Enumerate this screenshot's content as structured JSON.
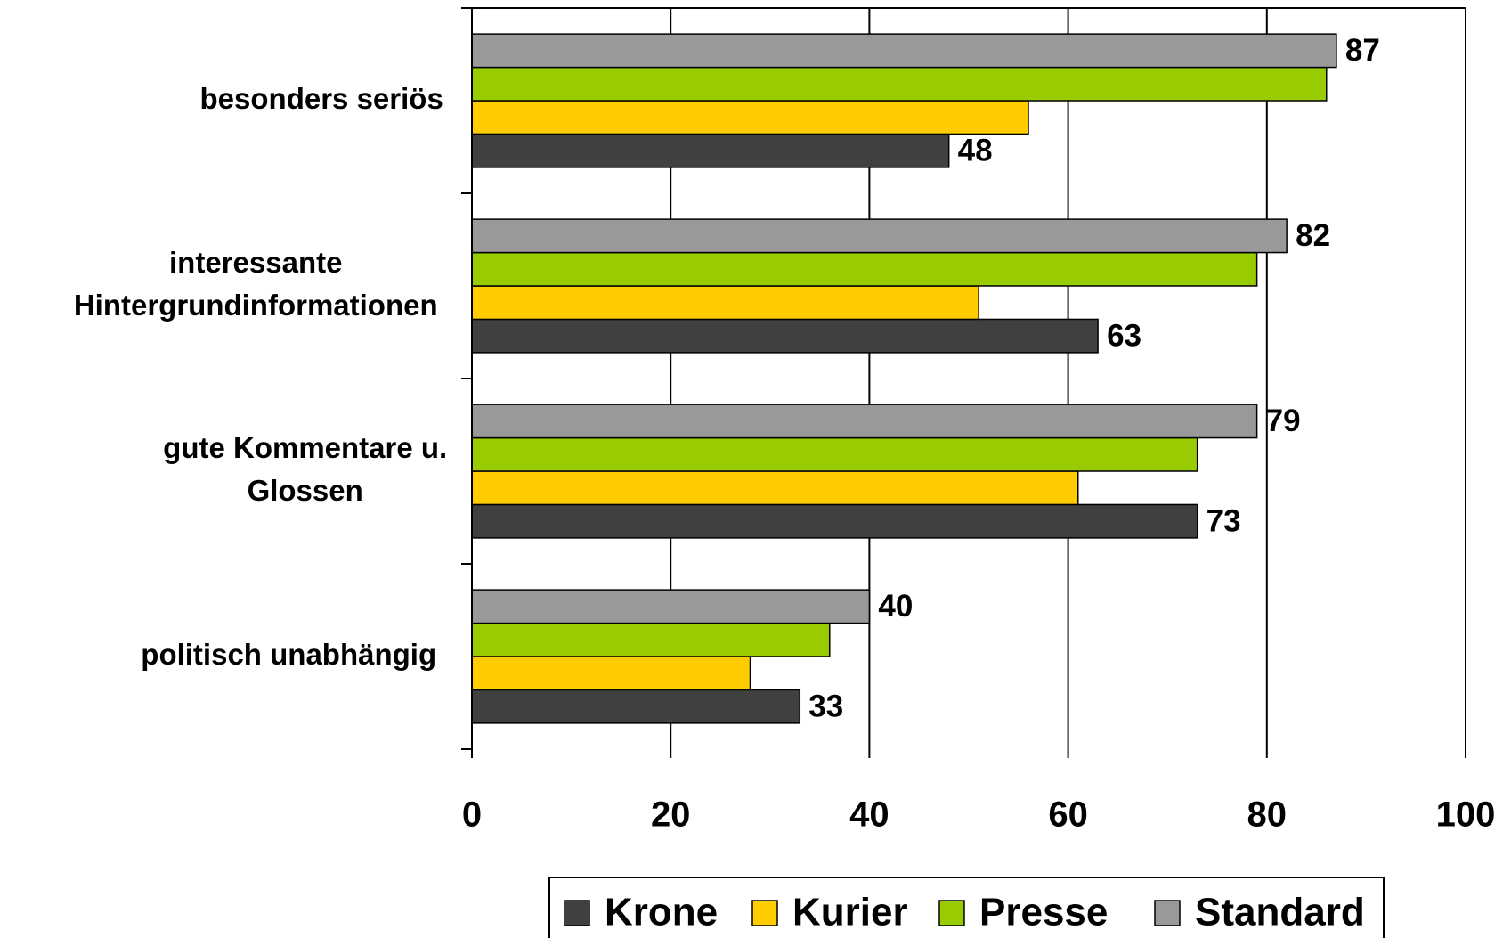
{
  "chart_data": {
    "type": "hbar",
    "categories": [
      "besonders seriös",
      "interessante\nHintergrundinformationen",
      "gute Kommentare u.\nGlossen",
      "politisch unabhängig"
    ],
    "series": [
      {
        "name": "Krone",
        "color": "#404040",
        "show_labels": true,
        "values": [
          48,
          63,
          73,
          33
        ]
      },
      {
        "name": "Kurier",
        "color": "#ffcc00",
        "show_labels": false,
        "values": [
          56,
          51,
          61,
          28
        ]
      },
      {
        "name": "Presse",
        "color": "#99cc00",
        "show_labels": false,
        "values": [
          86,
          79,
          73,
          36
        ]
      },
      {
        "name": "Standard",
        "color": "#999999",
        "show_labels": true,
        "values": [
          87,
          82,
          79,
          40
        ]
      }
    ],
    "xlim": [
      0,
      100
    ],
    "xticks": [
      0,
      20,
      40,
      60,
      80,
      100
    ],
    "grid": true,
    "legend": "bottom"
  }
}
